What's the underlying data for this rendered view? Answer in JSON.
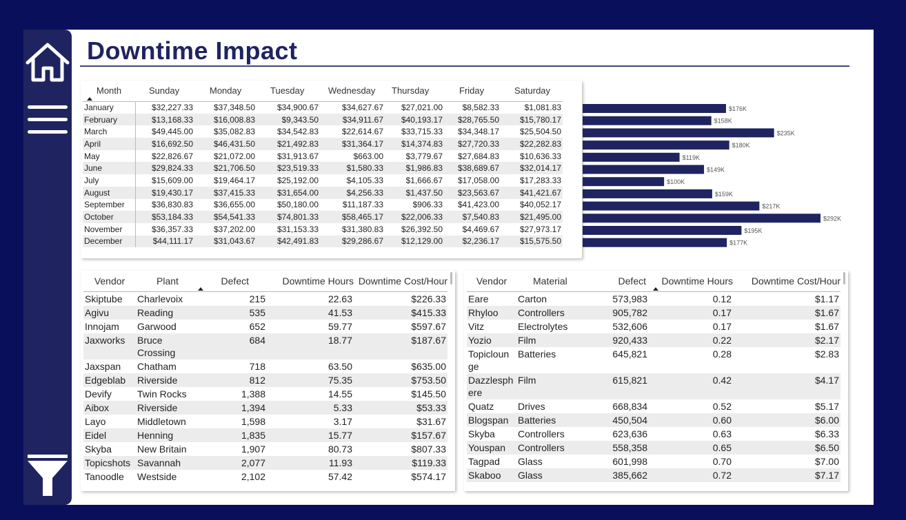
{
  "title": "Downtime Impact",
  "month_table": {
    "headers": [
      "Month",
      "Sunday",
      "Monday",
      "Tuesday",
      "Wednesday",
      "Thursday",
      "Friday",
      "Saturday"
    ],
    "rows": [
      [
        "January",
        "$32,227.33",
        "$37,348.50",
        "$34,900.67",
        "$34,627.67",
        "$27,021.00",
        "$8,582.33",
        "$1,081.83"
      ],
      [
        "February",
        "$13,168.33",
        "$16,008.83",
        "$9,343.50",
        "$34,911.67",
        "$40,193.17",
        "$28,765.50",
        "$15,780.17"
      ],
      [
        "March",
        "$49,445.00",
        "$35,082.83",
        "$34,542.83",
        "$22,614.67",
        "$33,715.33",
        "$34,348.17",
        "$25,504.50"
      ],
      [
        "April",
        "$16,692.50",
        "$46,431.50",
        "$21,492.83",
        "$31,364.17",
        "$14,374.83",
        "$27,720.33",
        "$22,282.83"
      ],
      [
        "May",
        "$22,826.67",
        "$21,072.00",
        "$31,913.67",
        "$663.00",
        "$3,779.67",
        "$27,684.83",
        "$10,636.33"
      ],
      [
        "June",
        "$29,824.33",
        "$21,706.50",
        "$23,519.33",
        "$1,580.33",
        "$1,986.83",
        "$38,689.67",
        "$32,014.17"
      ],
      [
        "July",
        "$15,609.00",
        "$19,464.17",
        "$25,192.00",
        "$4,105.33",
        "$1,666.67",
        "$17,058.00",
        "$17,283.33"
      ],
      [
        "August",
        "$19,430.17",
        "$37,415.33",
        "$31,654.00",
        "$4,256.33",
        "$1,437.50",
        "$23,563.67",
        "$41,421.67"
      ],
      [
        "September",
        "$36,830.83",
        "$36,655.00",
        "$50,180.00",
        "$11,187.33",
        "$906.33",
        "$41,423.00",
        "$40,052.17"
      ],
      [
        "October",
        "$53,184.33",
        "$54,541.33",
        "$74,801.33",
        "$58,465.17",
        "$22,006.33",
        "$7,540.83",
        "$21,495.00"
      ],
      [
        "November",
        "$36,357.33",
        "$37,202.00",
        "$31,153.33",
        "$31,380.83",
        "$26,392.50",
        "$4,469.67",
        "$27,973.17"
      ],
      [
        "December",
        "$44,111.17",
        "$31,043.67",
        "$42,491.83",
        "$29,286.67",
        "$12,129.00",
        "$2,236.17",
        "$15,575.50"
      ]
    ]
  },
  "chart_data": {
    "type": "bar",
    "categories": [
      "January",
      "February",
      "March",
      "April",
      "May",
      "June",
      "July",
      "August",
      "September",
      "October",
      "November",
      "December"
    ],
    "values": [
      176,
      158,
      235,
      180,
      119,
      149,
      100,
      159,
      217,
      292,
      195,
      177
    ],
    "labels": [
      "$176K",
      "$158K",
      "$235K",
      "$180K",
      "$119K",
      "$149K",
      "$100K",
      "$159K",
      "$217K",
      "$292K",
      "$195K",
      "$177K"
    ],
    "color": "#1f2460"
  },
  "vendor_plant_table": {
    "headers": [
      "Vendor",
      "Plant",
      "Defect",
      "Downtime Hours",
      "Downtime Cost/Hour"
    ],
    "rows": [
      [
        "Skiptube",
        "Charlevoix",
        "215",
        "22.63",
        "$226.33"
      ],
      [
        "Agivu",
        "Reading",
        "535",
        "41.53",
        "$415.33"
      ],
      [
        "Innojam",
        "Garwood",
        "652",
        "59.77",
        "$597.67"
      ],
      [
        "Jaxworks",
        "Bruce Crossing",
        "684",
        "18.77",
        "$187.67"
      ],
      [
        "Jaxspan",
        "Chatham",
        "718",
        "63.50",
        "$635.00"
      ],
      [
        "Edgeblab",
        "Riverside",
        "812",
        "75.35",
        "$753.50"
      ],
      [
        "Devify",
        "Twin Rocks",
        "1,388",
        "14.55",
        "$145.50"
      ],
      [
        "Aibox",
        "Riverside",
        "1,394",
        "5.33",
        "$53.33"
      ],
      [
        "Layo",
        "Middletown",
        "1,598",
        "3.17",
        "$31.67"
      ],
      [
        "Eidel",
        "Henning",
        "1,835",
        "15.77",
        "$157.67"
      ],
      [
        "Skyba",
        "New Britain",
        "1,907",
        "80.73",
        "$807.33"
      ],
      [
        "Topicshots",
        "Savannah",
        "2,077",
        "11.93",
        "$119.33"
      ],
      [
        "Tanoodle",
        "Westside",
        "2,102",
        "57.42",
        "$574.17"
      ]
    ]
  },
  "vendor_material_table": {
    "headers": [
      "Vendor",
      "Material",
      "Defect",
      "Downtime Hours",
      "Downtime Cost/Hour"
    ],
    "rows": [
      [
        "Eare",
        "Carton",
        "573,983",
        "0.12",
        "$1.17"
      ],
      [
        "Rhyloo",
        "Controllers",
        "905,782",
        "0.17",
        "$1.67"
      ],
      [
        "Vitz",
        "Electrolytes",
        "532,606",
        "0.17",
        "$1.67"
      ],
      [
        "Yozio",
        "Film",
        "920,433",
        "0.22",
        "$2.17"
      ],
      [
        "Topicloun ge",
        "Batteries",
        "645,821",
        "0.28",
        "$2.83"
      ],
      [
        "Dazzlesph ere",
        "Film",
        "615,821",
        "0.42",
        "$4.17"
      ],
      [
        "Quatz",
        "Drives",
        "668,834",
        "0.52",
        "$5.17"
      ],
      [
        "Blogspan",
        "Batteries",
        "450,504",
        "0.60",
        "$6.00"
      ],
      [
        "Skyba",
        "Controllers",
        "623,636",
        "0.63",
        "$6.33"
      ],
      [
        "Youspan",
        "Controllers",
        "558,358",
        "0.65",
        "$6.50"
      ],
      [
        "Tagpad",
        "Glass",
        "601,998",
        "0.70",
        "$7.00"
      ],
      [
        "Skaboo",
        "Glass",
        "385,662",
        "0.72",
        "$7.17"
      ]
    ]
  }
}
